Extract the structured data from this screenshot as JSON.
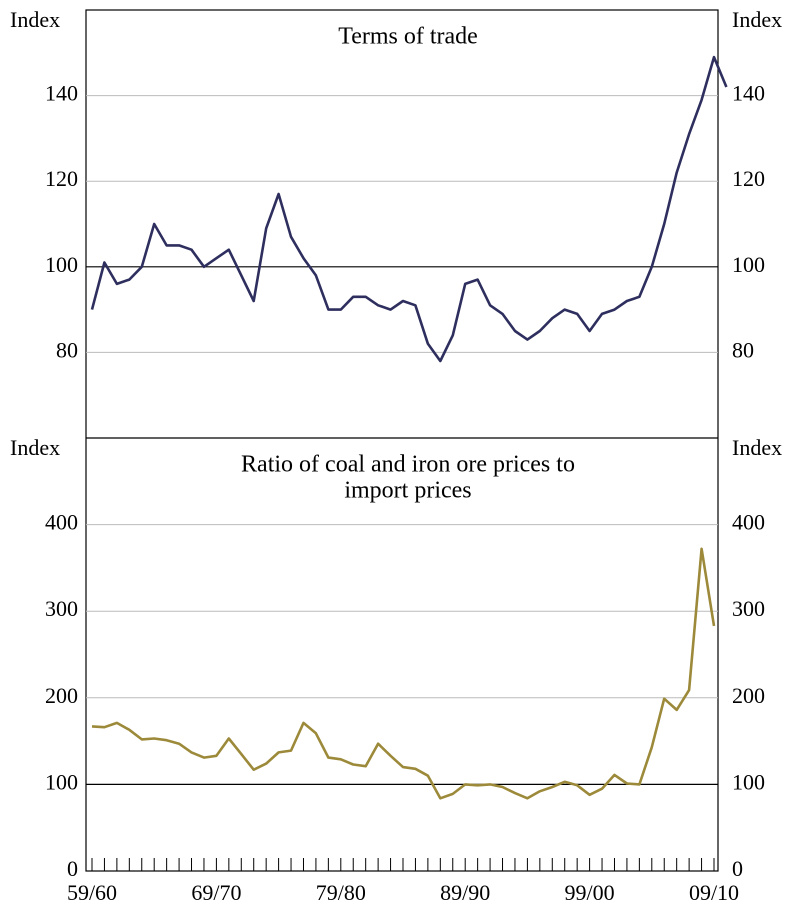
{
  "chart_data": [
    {
      "type": "line",
      "title": [
        "Terms of trade"
      ],
      "y_label": "Index",
      "y2_label": "Index",
      "ylim": [
        60,
        160
      ],
      "yticks": [
        80,
        100,
        120,
        140
      ],
      "reference": 100,
      "series": [
        {
          "name": "Terms of trade",
          "color": "#2e2f5e",
          "values": [
            90,
            101,
            96,
            97,
            100,
            110,
            105,
            105,
            104,
            100,
            102,
            104,
            98,
            92,
            109,
            117,
            107,
            102,
            98,
            90,
            90,
            93,
            93,
            91,
            90,
            92,
            91,
            82,
            78,
            84,
            96,
            97,
            91,
            89,
            85,
            83,
            85,
            88,
            90,
            89,
            85,
            89,
            90,
            92,
            93,
            100,
            110,
            122,
            131,
            139,
            149,
            142
          ]
        }
      ]
    },
    {
      "type": "line",
      "title": [
        "Ratio of coal and iron ore prices to",
        "import prices"
      ],
      "y_label": "Index",
      "y2_label": "Index",
      "ylim": [
        0,
        500
      ],
      "yticks": [
        0,
        100,
        200,
        300,
        400
      ],
      "reference": 100,
      "categories": [
        "59/60",
        null,
        null,
        null,
        null,
        null,
        null,
        null,
        null,
        null,
        "69/70",
        null,
        null,
        null,
        null,
        null,
        null,
        null,
        null,
        null,
        "79/80",
        null,
        null,
        null,
        null,
        null,
        null,
        null,
        null,
        null,
        "89/90",
        null,
        null,
        null,
        null,
        null,
        null,
        null,
        null,
        null,
        "99/00",
        null,
        null,
        null,
        null,
        null,
        null,
        null,
        null,
        null,
        "09/10"
      ],
      "series": [
        {
          "name": "Ratio of coal and iron ore prices to import prices",
          "color": "#9c8a3a",
          "values": [
            167,
            166,
            171,
            163,
            152,
            153,
            151,
            147,
            137,
            131,
            133,
            153,
            135,
            117,
            124,
            137,
            139,
            171,
            159,
            131,
            129,
            123,
            121,
            147,
            133,
            120,
            118,
            110,
            84,
            89,
            100,
            99,
            100,
            97,
            90,
            84,
            92,
            97,
            103,
            99,
            88,
            95,
            111,
            101,
            100,
            143,
            199,
            186,
            209,
            372,
            283
          ]
        }
      ]
    }
  ]
}
